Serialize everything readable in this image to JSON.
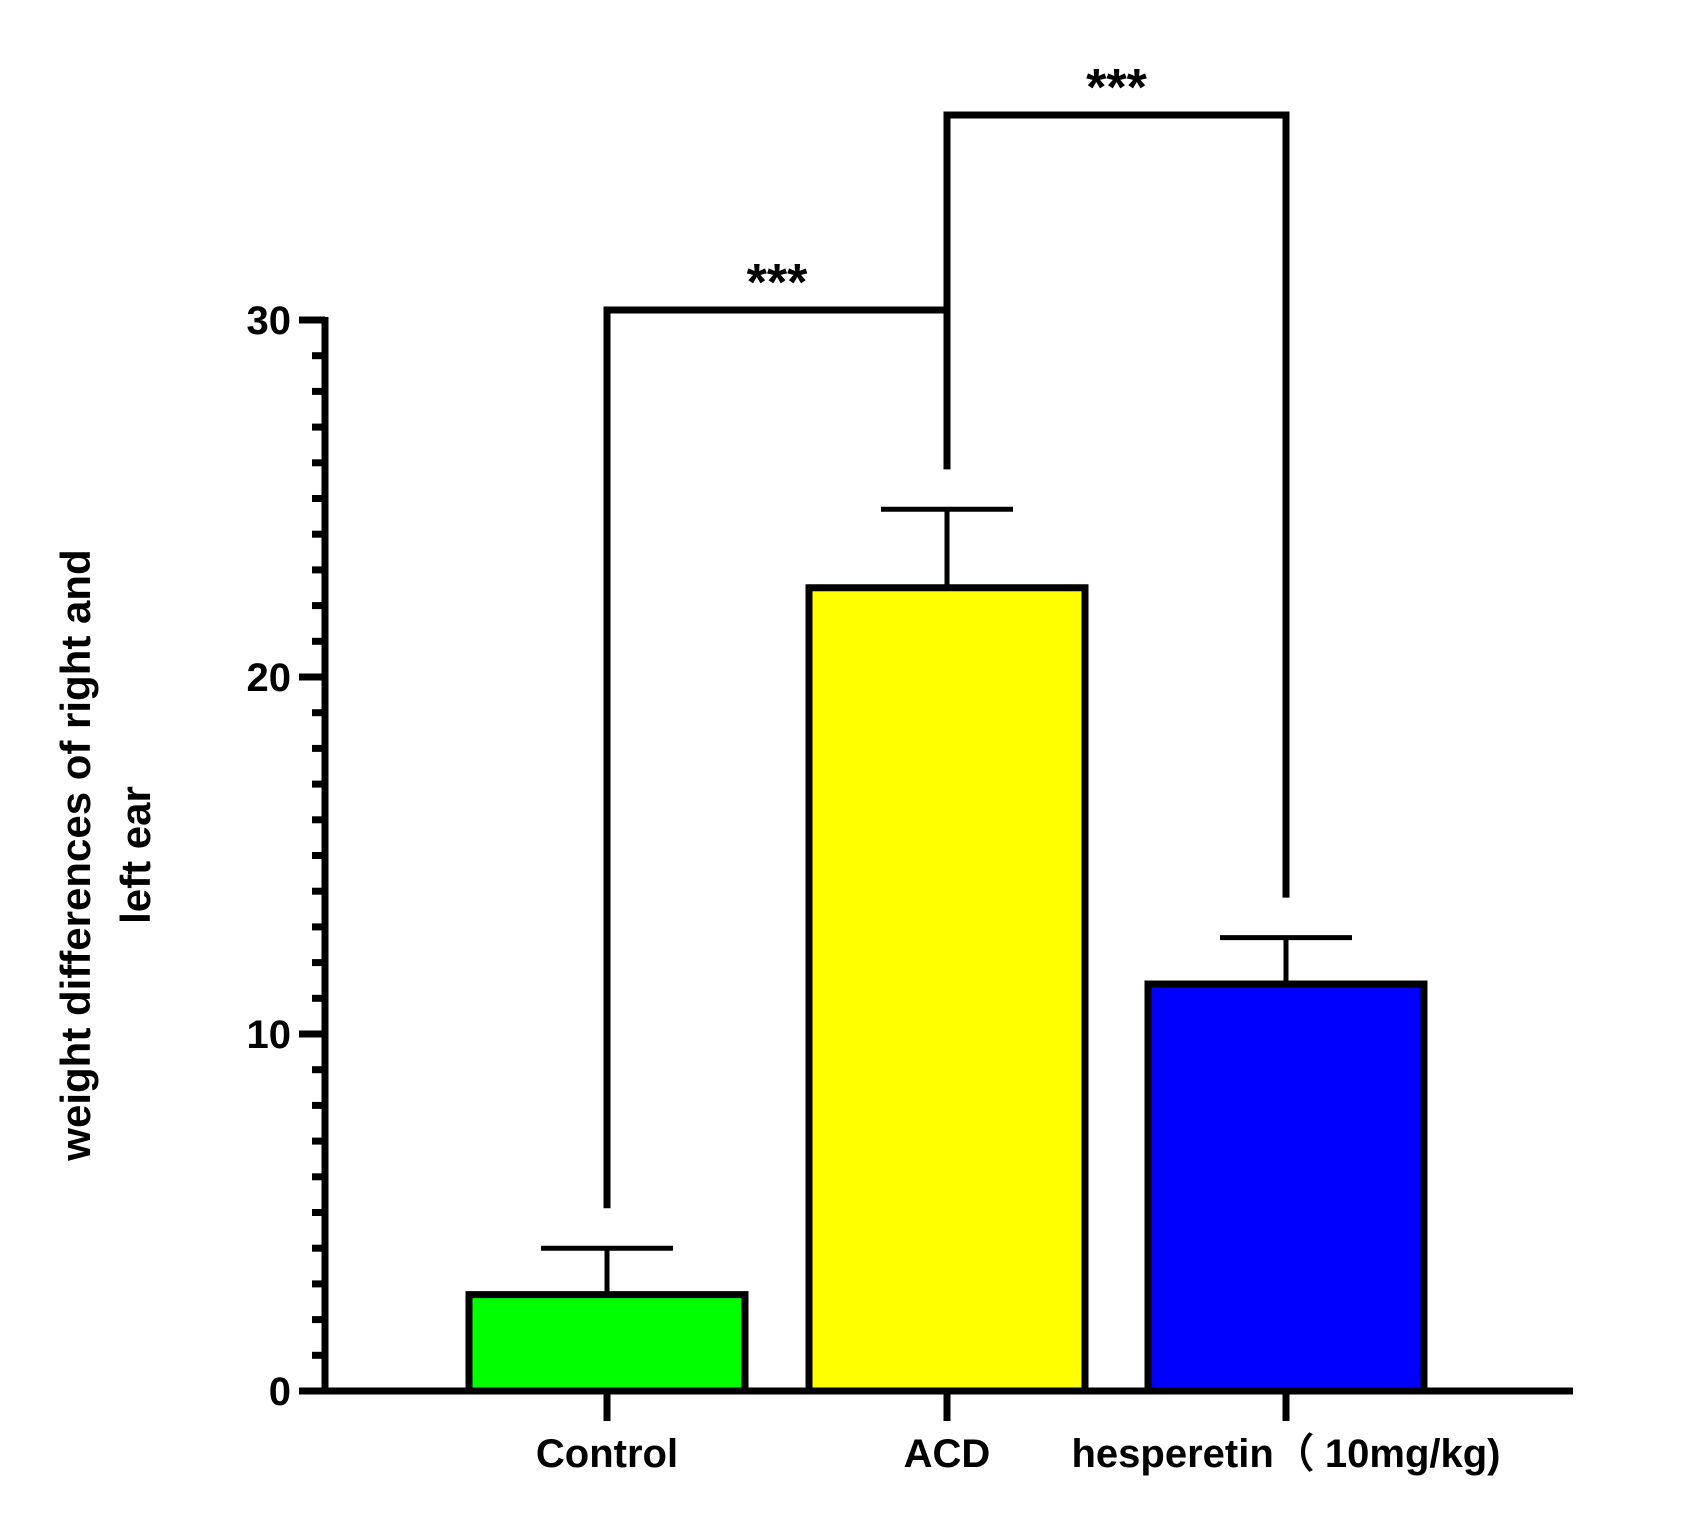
{
  "chart_data": {
    "type": "bar",
    "title": "",
    "xlabel": "",
    "ylabel": "weight differences of right and left ear",
    "ylabel_lines": [
      "weight differences of right and",
      "left ear"
    ],
    "ylim": [
      0,
      30
    ],
    "yticks": [
      0,
      10,
      20,
      30
    ],
    "y_minor_step": 1,
    "grid": false,
    "categories": [
      "Control",
      "ACD",
      "hesperetin（ 10mg/kg)"
    ],
    "values": [
      2.7,
      22.5,
      11.4
    ],
    "errors": [
      1.3,
      2.2,
      1.3
    ],
    "colors": [
      "#00FF00",
      "#FFFF00",
      "#0000FF"
    ],
    "significance": [
      {
        "from": 0,
        "to": 1,
        "label": "***"
      },
      {
        "from": 1,
        "to": 2,
        "label": "***"
      }
    ]
  }
}
